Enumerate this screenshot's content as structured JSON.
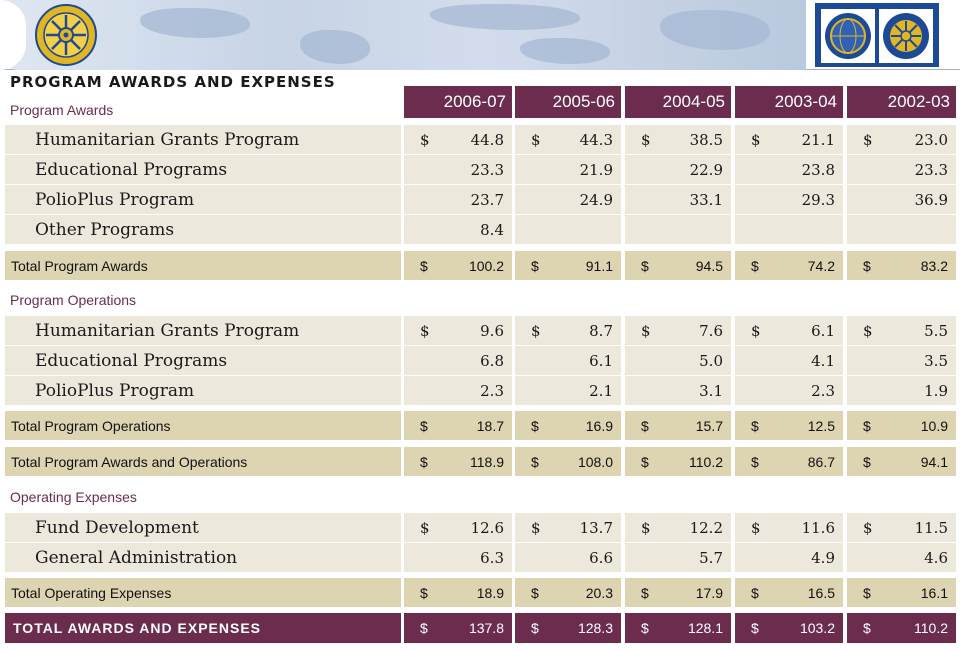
{
  "title": "PROGRAM AWARDS AND EXPENSES",
  "years": [
    "2006-07",
    "2005-06",
    "2004-05",
    "2003-04",
    "2002-03"
  ],
  "colors": {
    "header": "#6b2c4e",
    "detail": "#ece8dc",
    "total": "#ddd4b2",
    "logo_blue": "#1d4a97",
    "logo_gold": "#e2b522"
  },
  "logos": {
    "left": "rotary-wheel-logo",
    "right": "rotary-foundation-logos"
  },
  "sections": {
    "awards": {
      "label": "Program Awards",
      "rows": [
        {
          "label": "Humanitarian Grants Program",
          "dollar": "$",
          "values": [
            "44.8",
            "44.3",
            "38.5",
            "21.1",
            "23.0"
          ]
        },
        {
          "label": "Educational Programs",
          "dollar": "",
          "values": [
            "23.3",
            "21.9",
            "22.9",
            "23.8",
            "23.3"
          ]
        },
        {
          "label": "PolioPlus Program",
          "dollar": "",
          "values": [
            "23.7",
            "24.9",
            "33.1",
            "29.3",
            "36.9"
          ]
        },
        {
          "label": "Other Programs",
          "dollar": "",
          "values": [
            "8.4",
            "",
            "",
            "",
            ""
          ]
        }
      ],
      "total": {
        "label": "Total Program Awards",
        "dollar": "$",
        "values": [
          "100.2",
          "91.1",
          "94.5",
          "74.2",
          "83.2"
        ]
      }
    },
    "operations": {
      "label": "Program Operations",
      "rows": [
        {
          "label": "Humanitarian Grants Program",
          "dollar": "$",
          "values": [
            "9.6",
            "8.7",
            "7.6",
            "6.1",
            "5.5"
          ]
        },
        {
          "label": "Educational Programs",
          "dollar": "",
          "values": [
            "6.8",
            "6.1",
            "5.0",
            "4.1",
            "3.5"
          ]
        },
        {
          "label": "PolioPlus Program",
          "dollar": "",
          "values": [
            "2.3",
            "2.1",
            "3.1",
            "2.3",
            "1.9"
          ]
        }
      ],
      "total": {
        "label": "Total Program Operations",
        "dollar": "$",
        "values": [
          "18.7",
          "16.9",
          "15.7",
          "12.5",
          "10.9"
        ]
      }
    },
    "awards_and_operations": {
      "label": "Total Program Awards and Operations",
      "dollar": "$",
      "values": [
        "118.9",
        "108.0",
        "110.2",
        "86.7",
        "94.1"
      ]
    },
    "operating": {
      "label": "Operating Expenses",
      "rows": [
        {
          "label": "Fund Development",
          "dollar": "$",
          "values": [
            "12.6",
            "13.7",
            "12.2",
            "11.6",
            "11.5"
          ]
        },
        {
          "label": "General Administration",
          "dollar": "",
          "values": [
            "6.3",
            "6.6",
            "5.7",
            "4.9",
            "4.6"
          ]
        }
      ],
      "total": {
        "label": "Total Operating Expenses",
        "dollar": "$",
        "values": [
          "18.9",
          "20.3",
          "17.9",
          "16.5",
          "16.1"
        ]
      }
    },
    "grand_total": {
      "label": "TOTAL AWARDS AND EXPENSES",
      "dollar": "$",
      "values": [
        "137.8",
        "128.3",
        "128.1",
        "103.2",
        "110.2"
      ]
    }
  }
}
